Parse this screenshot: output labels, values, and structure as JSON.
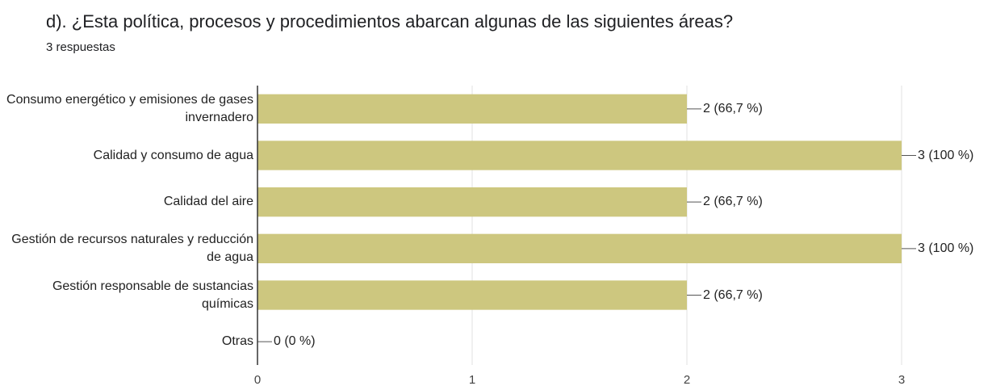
{
  "chart_data": {
    "type": "bar",
    "orientation": "horizontal",
    "title": "d). ¿Esta política, procesos y procedimientos  abarcan algunas de las siguientes áreas?",
    "subtitle": "3 respuestas",
    "categories": [
      "Consumo energético y emisiones de gases invernadero",
      "Calidad y consumo de agua",
      "Calidad del aire",
      "Gestión de recursos naturales y reducción de agua",
      "Gestión responsable de sustancias químicas",
      "Otras"
    ],
    "values": [
      2,
      3,
      2,
      3,
      2,
      0
    ],
    "value_labels": [
      "2 (66,7 %)",
      "3 (100 %)",
      "2 (66,7 %)",
      "3 (100 %)",
      "2 (66,7 %)",
      "0 (0 %)"
    ],
    "color": "#cdc77f",
    "xlim": [
      0,
      3
    ],
    "xticks": [
      0,
      1,
      2,
      3
    ],
    "grid": true
  }
}
